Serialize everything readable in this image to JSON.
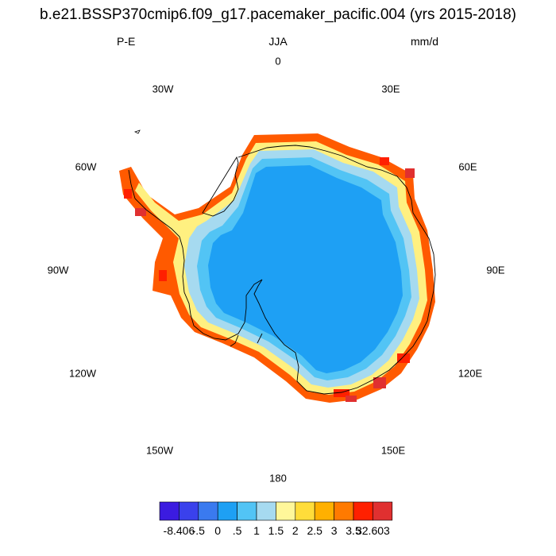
{
  "title": "b.e21.BSSP370cmip6.f09_g17.pacemaker_pacific.004 (yrs 2015-2018)",
  "variable": "P-E",
  "season": "JJA",
  "units": "mm/d",
  "longitude_labels": [
    "0",
    "30E",
    "60E",
    "90E",
    "120E",
    "150E",
    "180",
    "150W",
    "120W",
    "90W",
    "60W",
    "30W"
  ],
  "colorbar": {
    "tick_labels": [
      "-8.406",
      "-.5",
      "0",
      ".5",
      "1",
      "1.5",
      "2",
      "2.5",
      "3",
      "3.5",
      "32.603"
    ],
    "colors": [
      "#3b1be0",
      "#3a41ec",
      "#3a7aef",
      "#1ea0f4",
      "#52c4f5",
      "#a6daf0",
      "#fff79a",
      "#ffdd3a",
      "#ffb000",
      "#ff7a00",
      "#ff2000",
      "#e03030"
    ]
  },
  "colors": {
    "continent_interior": "#1ea0f4",
    "coastline": "#000000"
  }
}
